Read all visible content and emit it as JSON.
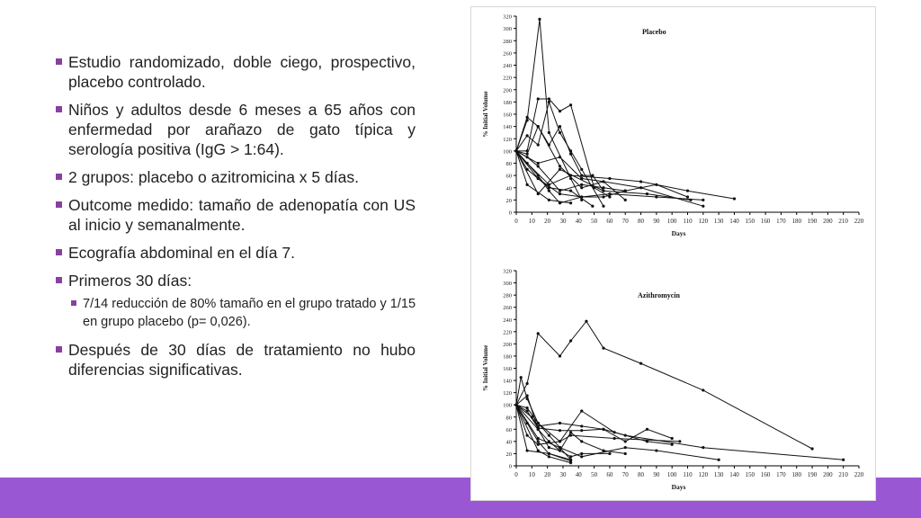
{
  "accent_colors": {
    "bar": "#9a57d4",
    "bar_line": "#7b2e80",
    "bullet": "#8a3fa0"
  },
  "bullets": [
    {
      "text": "Estudio randomizado, doble ciego, prospectivo, placebo controlado."
    },
    {
      "text": "Niños y adultos desde 6 meses a 65 años con enfermedad por arañazo de gato típica y serología positiva (IgG > 1:64)."
    },
    {
      "text": "2 grupos: placebo o azitromicina x 5 días."
    },
    {
      "text": "Outcome medido: tamaño de adenopatía con US al inicio y semanalmente."
    },
    {
      "text": "Ecografía abdominal en el día 7."
    },
    {
      "text": "Primeros 30 días:"
    },
    {
      "text": "Después de 30 días de tratamiento no hubo diferencias significativas."
    }
  ],
  "sub_bullets": [
    {
      "text": "7/14 reducción de 80% tamaño en el grupo tratado y 1/15 en grupo placebo (p= 0,026)."
    }
  ],
  "chart_data": [
    {
      "type": "line",
      "title": "Placebo",
      "xlabel": "Days",
      "ylabel": "% Initial Volume",
      "xlim": [
        0,
        220
      ],
      "ylim": [
        0,
        320
      ],
      "xticks": [
        0,
        10,
        20,
        30,
        40,
        50,
        60,
        70,
        80,
        90,
        100,
        110,
        120,
        130,
        140,
        150,
        160,
        170,
        180,
        190,
        200,
        210,
        220
      ],
      "yticks": [
        0,
        20,
        40,
        60,
        80,
        100,
        120,
        140,
        160,
        180,
        200,
        220,
        240,
        260,
        280,
        300,
        320
      ],
      "series": [
        {
          "x": [
            0,
            7,
            15,
            21,
            35,
            42
          ],
          "y": [
            100,
            150,
            315,
            130,
            55,
            20
          ]
        },
        {
          "x": [
            0,
            7,
            14,
            21,
            28,
            35,
            50,
            60
          ],
          "y": [
            100,
            100,
            185,
            185,
            165,
            175,
            40,
            25
          ]
        },
        {
          "x": [
            0,
            7,
            14,
            21,
            28,
            35,
            42,
            56
          ],
          "y": [
            100,
            125,
            110,
            180,
            130,
            100,
            70,
            10
          ]
        },
        {
          "x": [
            0,
            7,
            14,
            21,
            28,
            35,
            42,
            49,
            56
          ],
          "y": [
            100,
            155,
            140,
            110,
            140,
            95,
            60,
            60,
            35
          ]
        },
        {
          "x": [
            0,
            7,
            14,
            28,
            42,
            56,
            80,
            120
          ],
          "y": [
            100,
            95,
            140,
            75,
            40,
            50,
            40,
            10
          ]
        },
        {
          "x": [
            0,
            14,
            28,
            42,
            56,
            70
          ],
          "y": [
            100,
            80,
            90,
            55,
            50,
            20
          ]
        },
        {
          "x": [
            0,
            7,
            14,
            21,
            35,
            49
          ],
          "y": [
            100,
            70,
            55,
            40,
            35,
            10
          ]
        },
        {
          "x": [
            0,
            7,
            21,
            35,
            60,
            80,
            110,
            140
          ],
          "y": [
            100,
            80,
            45,
            60,
            55,
            50,
            35,
            22
          ]
        },
        {
          "x": [
            0,
            14,
            28,
            42,
            56,
            70
          ],
          "y": [
            100,
            55,
            30,
            25,
            25,
            35
          ]
        },
        {
          "x": [
            0,
            14,
            21,
            28,
            42,
            60,
            90,
            120
          ],
          "y": [
            100,
            60,
            35,
            15,
            25,
            30,
            25,
            20
          ]
        },
        {
          "x": [
            0,
            7,
            14,
            28,
            42,
            56,
            70,
            90,
            110
          ],
          "y": [
            100,
            90,
            75,
            35,
            45,
            40,
            35,
            45,
            25
          ]
        },
        {
          "x": [
            0,
            7,
            21,
            35
          ],
          "y": [
            100,
            45,
            20,
            15
          ]
        },
        {
          "x": [
            0,
            14,
            28,
            56,
            84,
            112
          ],
          "y": [
            100,
            30,
            70,
            35,
            30,
            20
          ]
        }
      ]
    },
    {
      "type": "line",
      "title": "Azithromycin",
      "xlabel": "Days",
      "ylabel": "% Initial Volume",
      "xlim": [
        0,
        220
      ],
      "ylim": [
        0,
        320
      ],
      "xticks": [
        0,
        10,
        20,
        30,
        40,
        50,
        60,
        70,
        80,
        90,
        100,
        110,
        120,
        130,
        140,
        150,
        160,
        170,
        180,
        190,
        200,
        210,
        220
      ],
      "yticks": [
        0,
        20,
        40,
        60,
        80,
        100,
        120,
        140,
        160,
        180,
        200,
        220,
        240,
        260,
        280,
        300,
        320
      ],
      "series": [
        {
          "x": [
            0,
            7,
            14,
            28,
            35,
            45,
            56,
            80,
            120,
            190
          ],
          "y": [
            100,
            135,
            217,
            180,
            205,
            237,
            193,
            168,
            124,
            28
          ]
        },
        {
          "x": [
            0,
            3,
            7,
            14,
            21,
            28,
            35
          ],
          "y": [
            100,
            145,
            110,
            70,
            50,
            30,
            10
          ]
        },
        {
          "x": [
            0,
            7,
            14,
            21,
            28,
            35,
            42,
            56,
            70
          ],
          "y": [
            100,
            115,
            60,
            40,
            25,
            55,
            40,
            25,
            20
          ]
        },
        {
          "x": [
            0,
            7,
            14,
            28,
            42,
            63,
            84,
            100
          ],
          "y": [
            100,
            95,
            70,
            40,
            90,
            55,
            40,
            35
          ]
        },
        {
          "x": [
            0,
            14,
            28,
            42,
            70,
            90,
            130
          ],
          "y": [
            100,
            45,
            30,
            15,
            30,
            25,
            10
          ]
        },
        {
          "x": [
            0,
            7,
            14,
            21,
            35
          ],
          "y": [
            100,
            70,
            40,
            20,
            10
          ]
        },
        {
          "x": [
            0,
            14,
            21,
            35
          ],
          "y": [
            100,
            25,
            15,
            5
          ]
        },
        {
          "x": [
            0,
            10,
            14,
            28,
            42,
            56,
            70,
            84,
            100
          ],
          "y": [
            100,
            80,
            65,
            70,
            65,
            60,
            40,
            60,
            45
          ]
        },
        {
          "x": [
            0,
            7,
            14,
            28,
            35,
            63,
            105
          ],
          "y": [
            100,
            50,
            35,
            40,
            50,
            45,
            40
          ]
        },
        {
          "x": [
            0,
            7,
            14,
            28,
            42,
            56,
            70,
            120,
            210
          ],
          "y": [
            100,
            90,
            62,
            58,
            58,
            60,
            50,
            30,
            10
          ]
        },
        {
          "x": [
            0,
            14,
            21,
            28,
            35,
            42,
            60
          ],
          "y": [
            100,
            60,
            30,
            25,
            15,
            20,
            20
          ]
        },
        {
          "x": [
            0,
            7,
            21,
            35
          ],
          "y": [
            100,
            25,
            20,
            8
          ]
        }
      ]
    }
  ]
}
